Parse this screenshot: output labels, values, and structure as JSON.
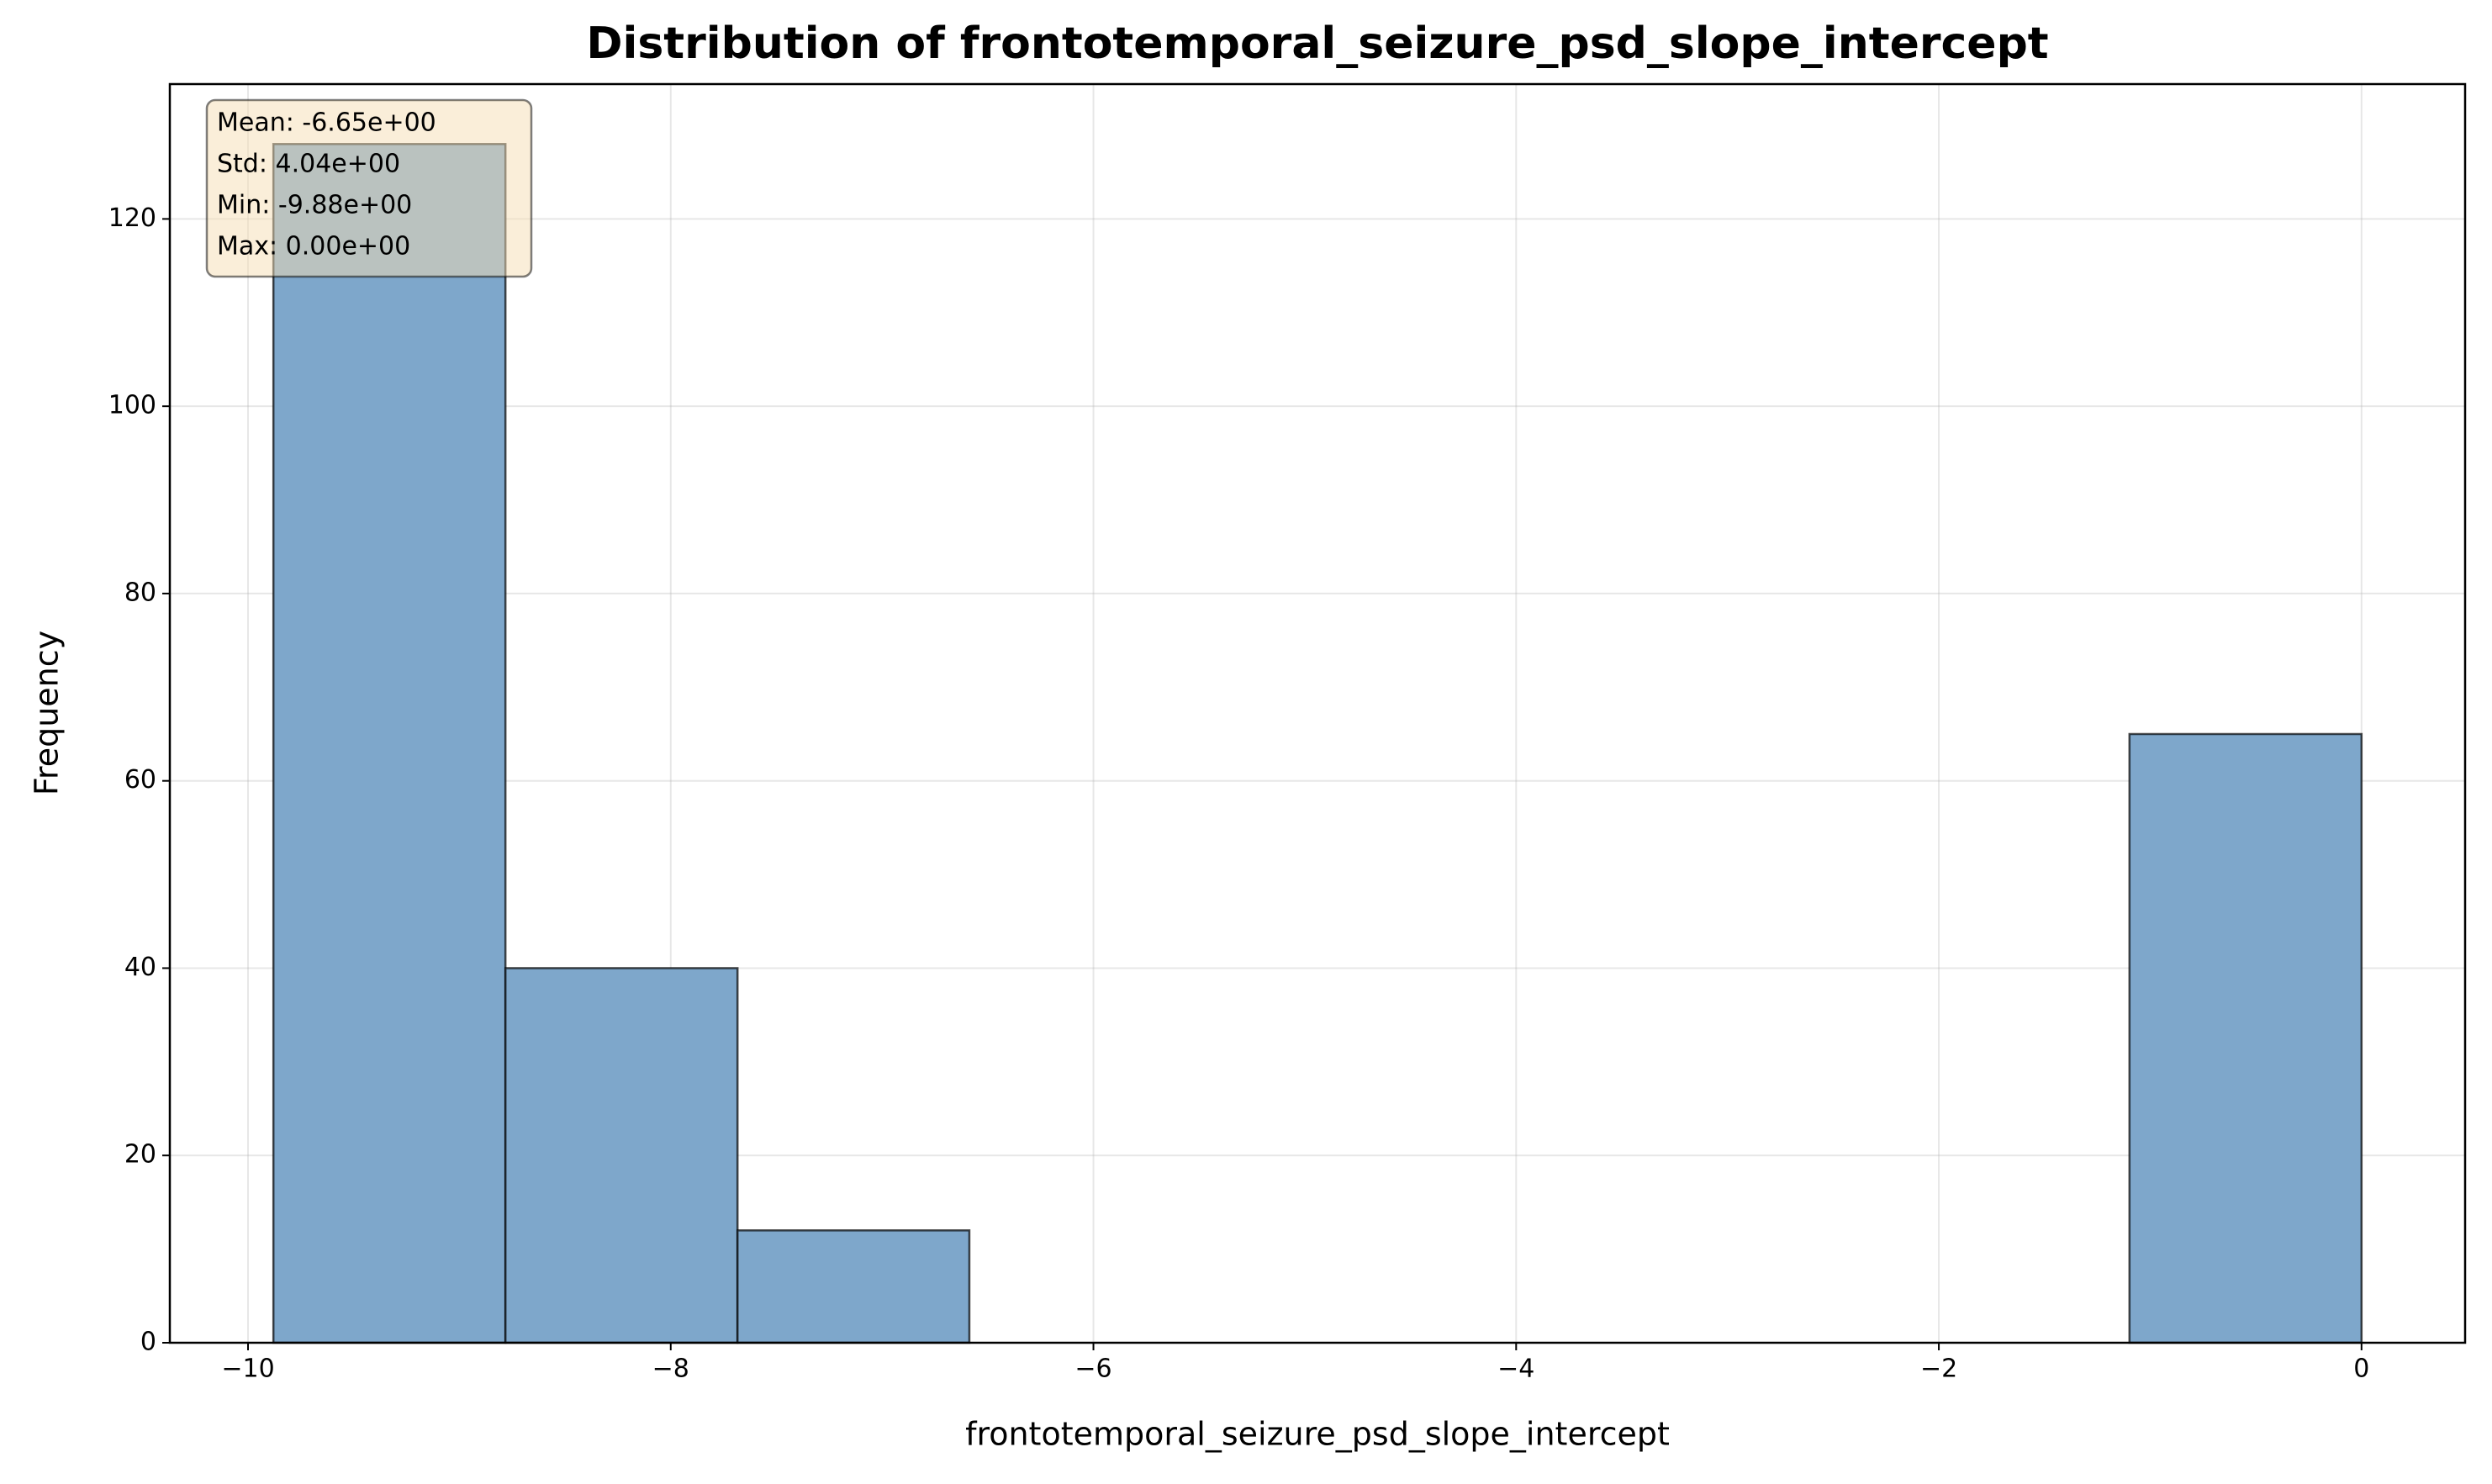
{
  "chart_data": {
    "type": "histogram",
    "title": "Distribution of frontotemporal_seizure_psd_slope_intercept",
    "x_label": "frontotemporal_seizure_psd_slope_intercept",
    "y_label": "Frequency",
    "bins": [
      -9.88,
      -8.782,
      -7.684,
      -6.587,
      -5.489,
      -4.391,
      -3.293,
      -2.196,
      -1.098,
      0
    ],
    "values": [
      128,
      40,
      12,
      0,
      0,
      0,
      0,
      0,
      65
    ],
    "color": "#7ea7cb",
    "xlim": [
      -10.37,
      0.49
    ],
    "ylim": [
      0,
      134.4
    ],
    "xticks": [
      {
        "value": -10,
        "label": "−10"
      },
      {
        "value": -8,
        "label": "−8"
      },
      {
        "value": -6,
        "label": "−6"
      },
      {
        "value": -4,
        "label": "−4"
      },
      {
        "value": -2,
        "label": "−2"
      },
      0
    ],
    "yticks": [
      0,
      20,
      40,
      60,
      80,
      100,
      120
    ],
    "grid": true,
    "stats_box": [
      "Mean: -6.65e+00",
      "Std: 4.04e+00",
      "Min: -9.88e+00",
      "Max: 0.00e+00"
    ]
  }
}
